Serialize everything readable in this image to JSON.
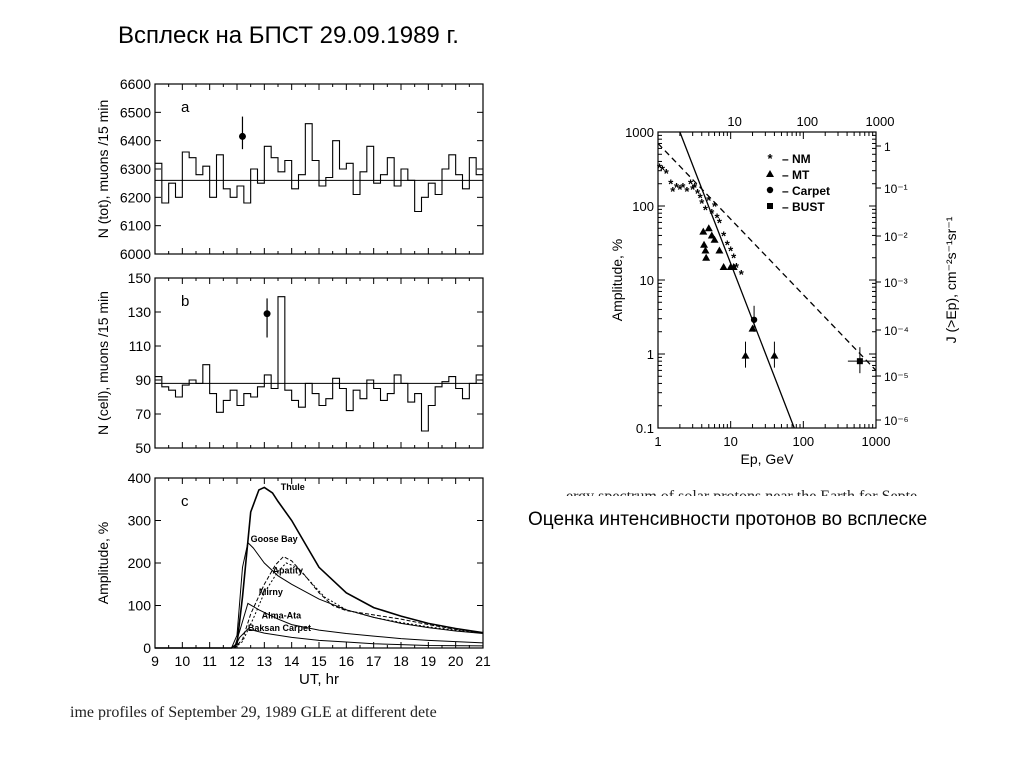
{
  "slide": {
    "title": "Всплеск на БПСТ 29.09.1989 г.",
    "right_caption": "Оценка интенсивности протонов во всплеске",
    "left_fig_caption_fragment": "ime profiles of September 29, 1989 GLE at different dete",
    "right_fig_caption_fragment": "ergy spectrum of solar protons near the Earth for Septe"
  },
  "chart_data": [
    {
      "type": "line",
      "panel": "a",
      "ylabel": "N (tot), muons /15 min",
      "xlabel": "",
      "xlim": [
        9,
        21
      ],
      "ylim": [
        6000,
        6600
      ],
      "yticks": [
        6000,
        6100,
        6200,
        6300,
        6400,
        6500,
        6600
      ],
      "reference_level": 6260,
      "series": [
        {
          "step": true,
          "x": [
            9.0,
            9.25,
            9.5,
            9.75,
            10.0,
            10.25,
            10.5,
            10.75,
            11.0,
            11.25,
            11.5,
            11.75,
            12.0,
            12.25,
            12.5,
            12.75,
            13.0,
            13.25,
            13.5,
            13.75,
            14.0,
            14.25,
            14.5,
            14.75,
            15.0,
            15.25,
            15.5,
            15.75,
            16.0,
            16.25,
            16.5,
            16.75,
            17.0,
            17.25,
            17.5,
            17.75,
            18.0,
            18.25,
            18.5,
            18.75,
            19.0,
            19.25,
            19.5,
            19.75,
            20.0,
            20.25,
            20.5,
            20.75
          ],
          "y": [
            6320,
            6180,
            6250,
            6200,
            6360,
            6340,
            6280,
            6310,
            6200,
            6350,
            6230,
            6200,
            6240,
            6180,
            6300,
            6250,
            6380,
            6340,
            6290,
            6330,
            6230,
            6280,
            6460,
            6330,
            6240,
            6270,
            6400,
            6300,
            6320,
            6210,
            6290,
            6380,
            6250,
            6280,
            6340,
            6240,
            6300,
            6260,
            6150,
            6200,
            6250,
            6210,
            6300,
            6350,
            6280,
            6230,
            6340,
            6280
          ]
        }
      ],
      "marker": {
        "x": 12.2,
        "y": 6415,
        "err_low": 6370,
        "err_high": 6485
      }
    },
    {
      "type": "line",
      "panel": "b",
      "ylabel": "N (cell), muons /15 min",
      "xlabel": "",
      "xlim": [
        9,
        21
      ],
      "ylim": [
        50,
        150
      ],
      "yticks": [
        50,
        70,
        90,
        110,
        130,
        150
      ],
      "reference_level": 88,
      "series": [
        {
          "step": true,
          "x": [
            9.0,
            9.25,
            9.5,
            9.75,
            10.0,
            10.25,
            10.5,
            10.75,
            11.0,
            11.25,
            11.5,
            11.75,
            12.0,
            12.25,
            12.5,
            12.75,
            13.0,
            13.25,
            13.5,
            13.75,
            14.0,
            14.25,
            14.5,
            14.75,
            15.0,
            15.25,
            15.5,
            15.75,
            16.0,
            16.25,
            16.5,
            16.75,
            17.0,
            17.25,
            17.5,
            17.75,
            18.0,
            18.25,
            18.5,
            18.75,
            19.0,
            19.25,
            19.5,
            19.75,
            20.0,
            20.25,
            20.5,
            20.75
          ],
          "y": [
            92,
            86,
            84,
            80,
            87,
            90,
            88,
            99,
            82,
            71,
            78,
            84,
            75,
            82,
            80,
            86,
            93,
            85,
            139,
            84,
            78,
            74,
            88,
            82,
            75,
            79,
            91,
            85,
            72,
            84,
            79,
            90,
            85,
            78,
            82,
            93,
            88,
            77,
            82,
            60,
            75,
            86,
            89,
            92,
            85,
            79,
            88,
            93
          ]
        }
      ],
      "marker": {
        "x": 13.1,
        "y": 129,
        "err_low": 115,
        "err_high": 138
      }
    },
    {
      "type": "line",
      "panel": "c",
      "ylabel": "Amplitude, %",
      "xlabel": "UT, hr",
      "xlim": [
        9,
        21
      ],
      "ylim": [
        0,
        400
      ],
      "xticks": [
        9,
        10,
        11,
        12,
        13,
        14,
        15,
        16,
        17,
        18,
        19,
        20,
        21
      ],
      "yticks": [
        0,
        100,
        200,
        300,
        400
      ],
      "series": [
        {
          "name": "Thule",
          "x": [
            9,
            11.8,
            12.0,
            12.2,
            12.5,
            12.8,
            13.0,
            13.3,
            13.5,
            14.0,
            14.5,
            15.0,
            16.0,
            17.0,
            18.0,
            19.0,
            20.0,
            21.0
          ],
          "y": [
            0,
            0,
            10,
            120,
            320,
            372,
            378,
            365,
            345,
            300,
            245,
            190,
            130,
            95,
            75,
            58,
            46,
            36
          ]
        },
        {
          "name": "Goose Bay",
          "x": [
            9,
            11.8,
            12.0,
            12.2,
            12.4,
            12.6,
            13.0,
            13.5,
            14.0,
            15.0,
            16.0,
            17.0,
            18.0,
            19.0,
            20.0,
            21.0
          ],
          "y": [
            0,
            0,
            30,
            190,
            248,
            235,
            200,
            170,
            150,
            115,
            90,
            72,
            58,
            48,
            40,
            34
          ]
        },
        {
          "name": "Apatity",
          "x": [
            9,
            11.9,
            12.2,
            12.5,
            13.0,
            13.4,
            13.7,
            14.0,
            14.5,
            15.0,
            15.5,
            16.0,
            17.0,
            18.0,
            19.0,
            20.0,
            21.0
          ],
          "y": [
            0,
            0,
            20,
            80,
            150,
            195,
            215,
            205,
            170,
            130,
            100,
            88,
            78,
            68,
            55,
            44,
            35
          ]
        },
        {
          "name": "Mirny",
          "x": [
            9,
            11.9,
            12.2,
            12.6,
            13.0,
            13.5,
            13.8,
            14.2,
            14.7,
            15.2,
            16.0,
            17.0,
            18.0,
            19.0,
            20.0,
            21.0
          ],
          "y": [
            0,
            0,
            15,
            70,
            130,
            180,
            200,
            190,
            155,
            120,
            90,
            72,
            60,
            50,
            42,
            35
          ]
        },
        {
          "name": "Alma-Ata",
          "x": [
            9,
            11.9,
            12.1,
            12.4,
            12.8,
            13.5,
            14.0,
            15.0,
            16.0,
            17.0,
            18.0,
            19.0,
            20.0,
            21.0
          ],
          "y": [
            0,
            0,
            40,
            105,
            90,
            68,
            55,
            42,
            34,
            28,
            22,
            18,
            15,
            12
          ]
        },
        {
          "name": "Baksan Carpet",
          "x": [
            9,
            11.9,
            12.1,
            12.4,
            13.0,
            14.0,
            15.0,
            16.0,
            17.0,
            18.0,
            19.0,
            21.0
          ],
          "y": [
            0,
            0,
            25,
            45,
            35,
            25,
            18,
            14,
            10,
            8,
            6,
            5
          ]
        }
      ],
      "panel_label": "c"
    },
    {
      "type": "scatter",
      "xlabel": "Ep, GeV",
      "ylabel": "Amplitude, %",
      "ylabel_right": "J (>Ep), cm⁻²s⁻¹sr⁻¹",
      "xscale": "log",
      "yscale": "log",
      "xlim": [
        1,
        1000
      ],
      "ylim": [
        0.1,
        1000
      ],
      "xticks": [
        "1",
        "10",
        "100",
        "1000"
      ],
      "yticks": [
        "0.1",
        "1",
        "10",
        "100",
        "1000"
      ],
      "top_xticks": [
        "10",
        "100",
        "1000"
      ],
      "right_yticks": [
        "1",
        "10⁻¹",
        "10⁻²",
        "10⁻³",
        "10⁻⁴",
        "10⁻⁵",
        "10⁻⁶"
      ],
      "legend": {
        "placement": "top-right",
        "entries": [
          {
            "symbol": "asterisk",
            "label": "– NM"
          },
          {
            "symbol": "triangle",
            "label": "– MT"
          },
          {
            "symbol": "circle",
            "label": "– Carpet"
          },
          {
            "symbol": "square",
            "label": "– BUST"
          }
        ]
      },
      "series": [
        {
          "name": "NM",
          "marker": "asterisk",
          "x": [
            1.05,
            1.15,
            1.3,
            1.5,
            1.6,
            1.8,
            2.0,
            2.2,
            2.5,
            2.8,
            3.0,
            3.2,
            3.5,
            3.8,
            4.0,
            4.5,
            5.0,
            5.5,
            6.0,
            6.5,
            7.0,
            8.0,
            9.0,
            10.0,
            11.0,
            12.0,
            14.0
          ],
          "y": [
            330,
            310,
            280,
            200,
            160,
            180,
            170,
            180,
            160,
            200,
            170,
            180,
            150,
            130,
            110,
            90,
            120,
            80,
            100,
            70,
            60,
            40,
            30,
            25,
            20,
            15,
            12
          ]
        },
        {
          "name": "MT",
          "marker": "triangle",
          "x": [
            4.2,
            4.3,
            4.5,
            4.6,
            5.0,
            5.5,
            6.0,
            7.0,
            8.0,
            10.0,
            11.0,
            16.0,
            20.0,
            40.0
          ],
          "y": [
            45,
            30,
            25,
            20,
            50,
            40,
            35,
            25,
            15,
            15,
            15,
            0.95,
            2.2,
            0.95
          ]
        },
        {
          "name": "Carpet",
          "marker": "circle",
          "x": [
            21.0
          ],
          "y": [
            2.9
          ]
        },
        {
          "name": "BUST",
          "marker": "square",
          "x": [
            600.0
          ],
          "y": [
            0.8
          ]
        }
      ],
      "fit_lines": [
        {
          "style": "solid",
          "x": [
            2.0,
            75.0
          ],
          "y": [
            1000,
            0.1
          ]
        },
        {
          "style": "dashed",
          "x": [
            1.0,
            1000.0
          ],
          "y": [
            700,
            0.6
          ]
        }
      ]
    }
  ]
}
